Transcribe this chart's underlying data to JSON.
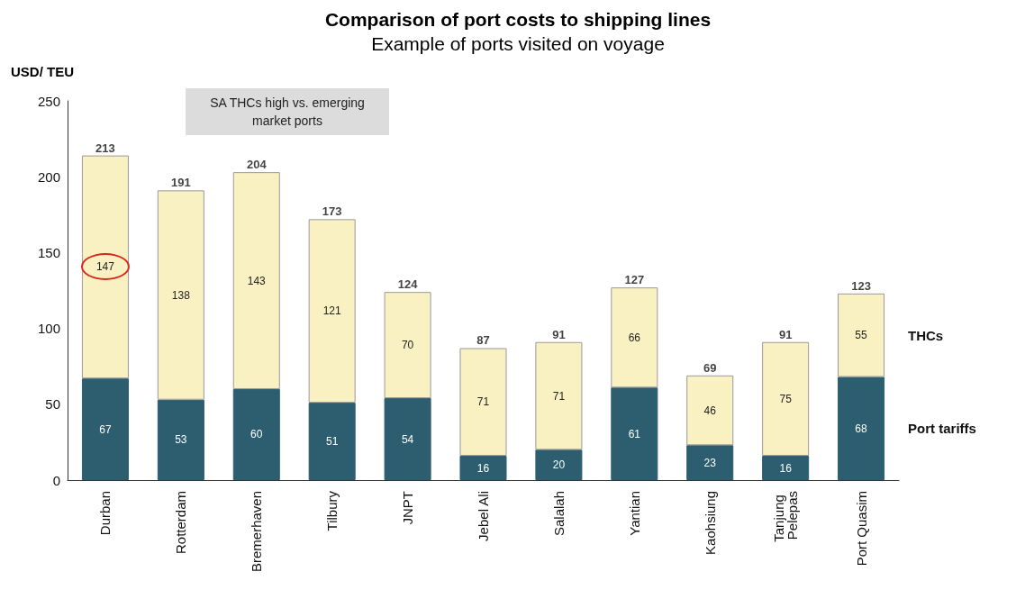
{
  "chart_data": {
    "type": "bar",
    "title": "Comparison of port costs to shipping lines",
    "subtitle": "Example of ports visited on voyage",
    "ylabel": "USD/ TEU",
    "categories": [
      "Durban",
      "Rotterdam",
      "Bremerhaven",
      "Tilbury",
      "JNPT",
      "Jebel Ali",
      "Salalah",
      "Yantian",
      "Kaohsiung",
      "Tanjung Pelepas",
      "Port Quasim"
    ],
    "stacked": true,
    "series": [
      {
        "name": "Port tariffs",
        "color": "#2c5e6f",
        "values": [
          67,
          53,
          60,
          51,
          54,
          16,
          20,
          61,
          23,
          16,
          68
        ]
      },
      {
        "name": "THCs",
        "color": "#faf1c2",
        "values": [
          147,
          138,
          143,
          121,
          70,
          71,
          71,
          66,
          46,
          75,
          55
        ]
      }
    ],
    "totals": [
      "213",
      "191",
      "204",
      "173",
      "124",
      "87",
      "91",
      "127",
      "69",
      "91",
      "123"
    ],
    "data_labels": true,
    "annotations": [
      "SA THCs high vs. emerging market ports"
    ],
    "ylim": [
      0,
      250
    ],
    "yticks": [
      0,
      50,
      100,
      150,
      200,
      250
    ],
    "grid": false
  }
}
